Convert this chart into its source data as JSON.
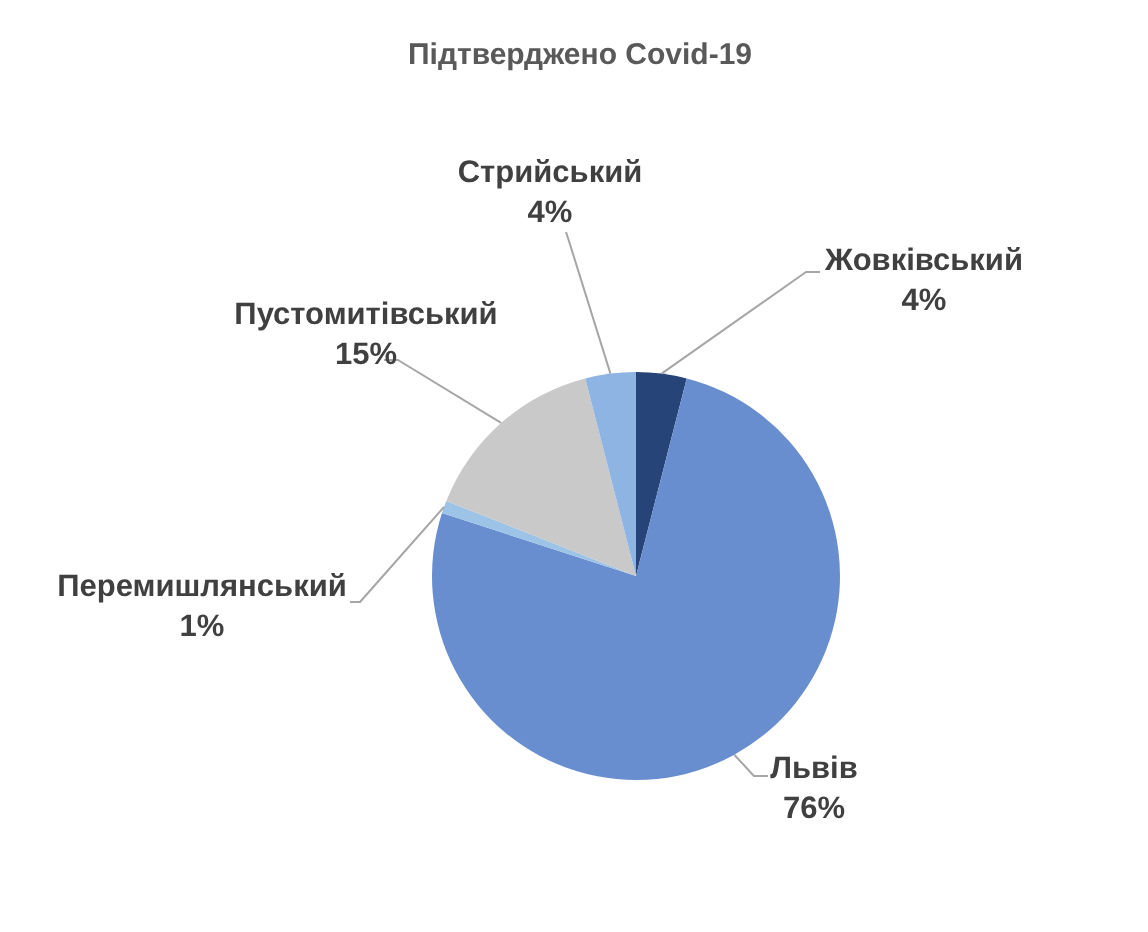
{
  "chart_data": {
    "type": "pie",
    "title": "Підтверджено Covid-19",
    "categories": [
      "Жовківський",
      "Львів",
      "Перемишлянський",
      "Пустомитівський",
      "Стрийський"
    ],
    "values": [
      4,
      76,
      1,
      15,
      4
    ],
    "colors": [
      "#264478",
      "#698ed0",
      "#9dc3e6",
      "#c9c9c9",
      "#8eb4e3"
    ],
    "value_labels": [
      "4%",
      "76%",
      "1%",
      "15%",
      "4%"
    ]
  }
}
